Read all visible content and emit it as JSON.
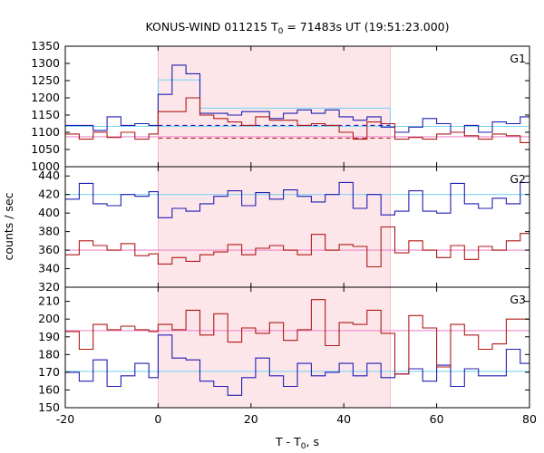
{
  "chart_data": {
    "type": "line",
    "title": "KONUS-WIND 011215 T",
    "title_sub": "0",
    "title_rest": " = 71483s UT (19:51:23.000)",
    "xlabel": "T - T",
    "xlabel_sub": "0",
    "xlabel_rest": ", s",
    "ylabel": "counts / sec",
    "xlim": [
      -20,
      80
    ],
    "xticks": [
      -20,
      0,
      20,
      40,
      60,
      80
    ],
    "highlight_interval": [
      0,
      50
    ],
    "colors": {
      "blue": "#1f1fb4",
      "red": "#b01818",
      "bg_blue": "#7fd4f0",
      "bg_red": "#ee88cc",
      "shade": "#fde6ea",
      "shade_edge": "#f4b8c4"
    },
    "panels": [
      {
        "label": "G1",
        "ylim": [
          1000,
          1350
        ],
        "yticks": [
          1000,
          1050,
          1100,
          1150,
          1200,
          1250,
          1300,
          1350
        ],
        "series": [
          {
            "color": "blue",
            "x": [
              -20,
              -17,
              -14,
              -11,
              -8,
              -5,
              -2,
              0,
              3,
              6,
              9,
              12,
              15,
              18,
              21,
              24,
              27,
              30,
              33,
              36,
              39,
              42,
              45,
              48,
              51,
              54,
              57,
              60,
              63,
              66,
              69,
              72,
              75,
              78,
              80
            ],
            "y": [
              1120,
              1120,
              1105,
              1145,
              1120,
              1125,
              1120,
              1210,
              1295,
              1270,
              1155,
              1155,
              1150,
              1160,
              1160,
              1140,
              1155,
              1165,
              1155,
              1165,
              1145,
              1135,
              1145,
              1115,
              1100,
              1115,
              1140,
              1125,
              1100,
              1120,
              1100,
              1130,
              1125,
              1145,
              1145
            ]
          },
          {
            "color": "red",
            "x": [
              -20,
              -17,
              -14,
              -11,
              -8,
              -5,
              -2,
              0,
              3,
              6,
              9,
              12,
              15,
              18,
              21,
              24,
              27,
              30,
              33,
              36,
              39,
              42,
              45,
              48,
              51,
              54,
              57,
              60,
              63,
              66,
              69,
              72,
              75,
              78,
              80
            ],
            "y": [
              1095,
              1080,
              1100,
              1085,
              1100,
              1080,
              1095,
              1160,
              1160,
              1200,
              1150,
              1140,
              1130,
              1120,
              1145,
              1135,
              1135,
              1120,
              1125,
              1120,
              1100,
              1080,
              1130,
              1125,
              1080,
              1085,
              1080,
              1095,
              1100,
              1090,
              1080,
              1095,
              1090,
              1070,
              1070
            ]
          },
          {
            "color": "bg_blue",
            "kind": "bg",
            "x": [
              -20,
              80
            ],
            "y": [
              1117,
              1117
            ]
          },
          {
            "color": "bg_red",
            "kind": "bg",
            "x": [
              -20,
              80
            ],
            "y": [
              1087,
              1087
            ]
          },
          {
            "color": "bg_blue",
            "kind": "model",
            "x": [
              0,
              0,
              9,
              9,
              50,
              50
            ],
            "y": [
              1117,
              1252,
              1252,
              1170,
              1170,
              1117
            ]
          },
          {
            "color": "blue",
            "kind": "dashed",
            "x": [
              0,
              50
            ],
            "y": [
              1120,
              1120
            ]
          },
          {
            "color": "red",
            "kind": "dashed",
            "x": [
              0,
              50
            ],
            "y": [
              1083,
              1083
            ]
          }
        ]
      },
      {
        "label": "G2",
        "ylim": [
          320,
          450
        ],
        "yticks": [
          320,
          340,
          360,
          380,
          400,
          420,
          440
        ],
        "series": [
          {
            "color": "blue",
            "x": [
              -20,
              -17,
              -14,
              -11,
              -8,
              -5,
              -2,
              0,
              3,
              6,
              9,
              12,
              15,
              18,
              21,
              24,
              27,
              30,
              33,
              36,
              39,
              42,
              45,
              48,
              51,
              54,
              57,
              60,
              63,
              66,
              69,
              72,
              75,
              78,
              80
            ],
            "y": [
              415,
              432,
              410,
              408,
              420,
              418,
              423,
              395,
              405,
              402,
              410,
              418,
              424,
              408,
              422,
              415,
              425,
              418,
              412,
              420,
              433,
              405,
              420,
              398,
              402,
              424,
              402,
              400,
              432,
              410,
              405,
              416,
              410,
              433,
              433
            ]
          },
          {
            "color": "red",
            "x": [
              -20,
              -17,
              -14,
              -11,
              -8,
              -5,
              -2,
              0,
              3,
              6,
              9,
              12,
              15,
              18,
              21,
              24,
              27,
              30,
              33,
              36,
              39,
              42,
              45,
              48,
              51,
              54,
              57,
              60,
              63,
              66,
              69,
              72,
              75,
              78,
              80
            ],
            "y": [
              355,
              370,
              365,
              360,
              367,
              354,
              356,
              345,
              352,
              348,
              355,
              358,
              366,
              355,
              362,
              365,
              360,
              355,
              377,
              360,
              366,
              364,
              342,
              385,
              357,
              370,
              360,
              352,
              365,
              350,
              364,
              360,
              370,
              378,
              378
            ]
          },
          {
            "color": "bg_blue",
            "kind": "bg",
            "x": [
              -20,
              80
            ],
            "y": [
              420,
              420
            ]
          },
          {
            "color": "bg_red",
            "kind": "bg",
            "x": [
              -20,
              80
            ],
            "y": [
              360,
              360
            ]
          }
        ]
      },
      {
        "label": "G3",
        "ylim": [
          150,
          218
        ],
        "yticks": [
          150,
          160,
          170,
          180,
          190,
          200,
          210
        ],
        "series": [
          {
            "color": "blue",
            "x": [
              -20,
              -17,
              -14,
              -11,
              -8,
              -5,
              -2,
              0,
              3,
              6,
              9,
              12,
              15,
              18,
              21,
              24,
              27,
              30,
              33,
              36,
              39,
              42,
              45,
              48,
              51,
              54,
              57,
              60,
              63,
              66,
              69,
              72,
              75,
              78,
              80
            ],
            "y": [
              170,
              165,
              177,
              162,
              168,
              175,
              167,
              191,
              178,
              177,
              165,
              162,
              157,
              167,
              178,
              168,
              162,
              175,
              168,
              170,
              175,
              168,
              175,
              167,
              169,
              172,
              165,
              174,
              162,
              172,
              168,
              168,
              183,
              175,
              175
            ]
          },
          {
            "color": "red",
            "x": [
              -20,
              -17,
              -14,
              -11,
              -8,
              -5,
              -2,
              0,
              3,
              6,
              9,
              12,
              15,
              18,
              21,
              24,
              27,
              30,
              33,
              36,
              39,
              42,
              45,
              48,
              51,
              54,
              57,
              60,
              63,
              66,
              69,
              72,
              75,
              78,
              80
            ],
            "y": [
              193,
              183,
              197,
              194,
              196,
              194,
              193,
              197,
              194,
              205,
              191,
              203,
              187,
              195,
              192,
              198,
              188,
              194,
              211,
              185,
              198,
              197,
              205,
              192,
              169,
              202,
              195,
              173,
              197,
              191,
              183,
              186,
              200,
              200,
              200
            ]
          },
          {
            "color": "bg_blue",
            "kind": "bg",
            "x": [
              -20,
              80
            ],
            "y": [
              170.5,
              170.5
            ]
          },
          {
            "color": "bg_red",
            "kind": "bg",
            "x": [
              -20,
              80
            ],
            "y": [
              193.5,
              193.5
            ]
          }
        ]
      }
    ]
  }
}
